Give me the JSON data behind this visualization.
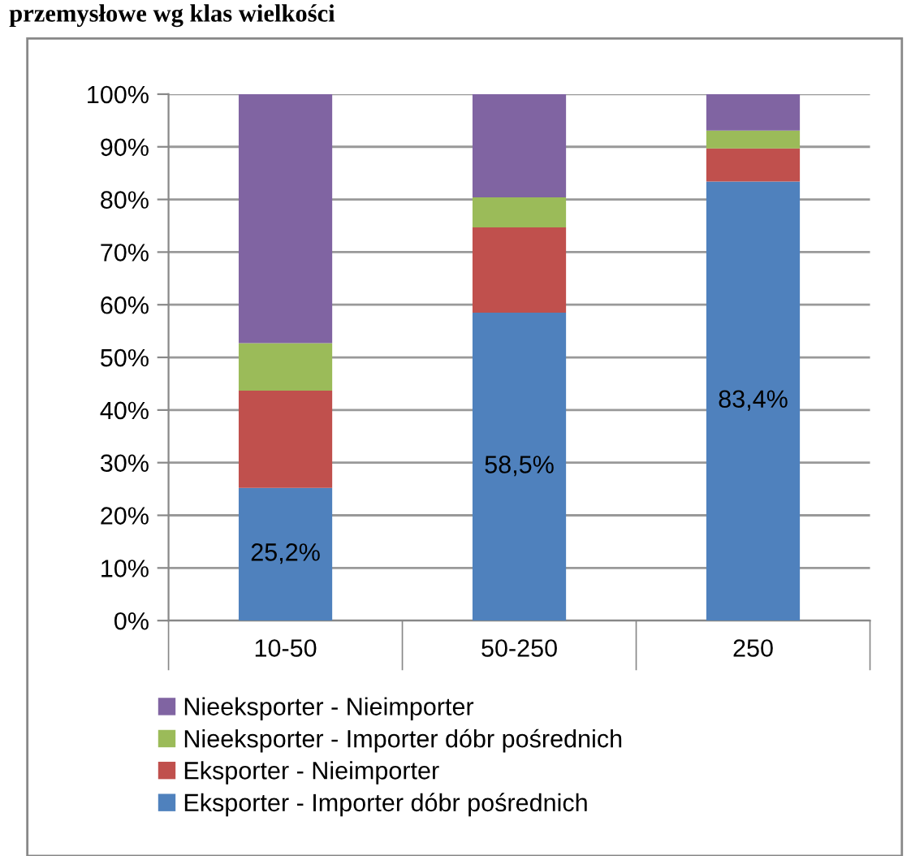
{
  "chart_data": {
    "type": "bar",
    "stacked": true,
    "title": "przemysłowe wg klas wielkości",
    "categories": [
      "10-50",
      "50-250",
      "250"
    ],
    "series": [
      {
        "name": "Eksporter - Importer dóbr pośrednich",
        "color": "#4f81bd",
        "values": [
          25.2,
          58.5,
          83.4
        ],
        "value_labels": [
          "25,2%",
          "58,5%",
          "83,4%"
        ]
      },
      {
        "name": "Eksporter - Nieimporter",
        "color": "#c0504d",
        "values": [
          18.5,
          16.2,
          6.3
        ]
      },
      {
        "name": "Nieeksporter - Importer dóbr pośrednich",
        "color": "#9bbb59",
        "values": [
          9.0,
          5.7,
          3.4
        ]
      },
      {
        "name": "Nieeksporter - Nieimporter",
        "color": "#8064a2",
        "values": [
          47.3,
          19.6,
          6.9
        ]
      }
    ],
    "ylim": [
      0,
      100
    ],
    "yticks": [
      {
        "value": 0,
        "label": "0%"
      },
      {
        "value": 10,
        "label": "10%"
      },
      {
        "value": 20,
        "label": "20%"
      },
      {
        "value": 30,
        "label": "30%"
      },
      {
        "value": 40,
        "label": "40%"
      },
      {
        "value": 50,
        "label": "50%"
      },
      {
        "value": 60,
        "label": "60%"
      },
      {
        "value": 70,
        "label": "70%"
      },
      {
        "value": 80,
        "label": "80%"
      },
      {
        "value": 90,
        "label": "90%"
      },
      {
        "value": 100,
        "label": "100%"
      }
    ],
    "grid": "y",
    "legend": "bottom"
  }
}
